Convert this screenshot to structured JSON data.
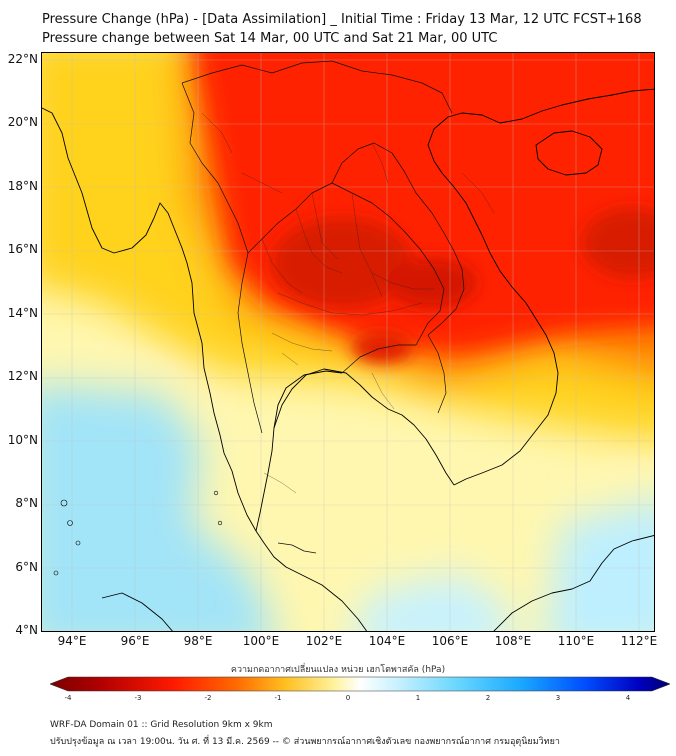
{
  "title_line1": "Pressure Change (hPa) - [Data Assimilation] _ Initial Time : Friday 13 Mar, 12 UTC FCST+168",
  "title_line2": "Pressure change between Sat 14 Mar, 00 UTC and Sat 21 Mar, 00 UTC",
  "map": {
    "lat_labels": [
      "22°N",
      "20°N",
      "18°N",
      "16°N",
      "14°N",
      "12°N",
      "10°N",
      "8°N",
      "6°N",
      "4°N"
    ],
    "lon_labels": [
      "94°E",
      "96°E",
      "98°E",
      "100°E",
      "102°E",
      "104°E",
      "106°E",
      "108°E",
      "110°E",
      "112°E"
    ],
    "lat_range": [
      4,
      22.2
    ],
    "lon_range": [
      93,
      112.5
    ],
    "colors": {
      "strong_fall": "#c81400",
      "fall": "#ff2200",
      "moderate_fall": "#ff7a00",
      "slight_fall": "#ffd21e",
      "near_zero": "#fff7b0",
      "slight_rise": "#c7f2ff",
      "rise": "#a2e4f8"
    }
  },
  "colorbar": {
    "title": "ความกดอากาศเปลี่ยนแปลง หน่วย เฮกโตพาสคัล (hPa)",
    "ticks": [
      "-4",
      "-3",
      "-2",
      "-1",
      "0",
      "1",
      "2",
      "3",
      "4"
    ],
    "range": [
      -4,
      4
    ]
  },
  "footer_line1": "WRF-DA Domain 01 :: Grid Resolution 9km x 9km",
  "footer_line2": "ปรับปรุงข้อมูล ณ เวลา 19:00น. วัน ศ. ที่ 13 มี.ค. 2569 -- © ส่วนพยากรณ์อากาศเชิงตัวเลข กองพยากรณ์อากาศ กรมอุตุนิยมวิทยา"
}
